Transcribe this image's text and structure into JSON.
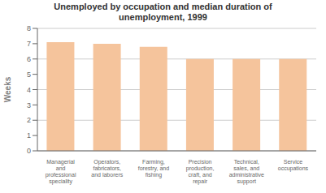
{
  "chart_data": {
    "type": "bar",
    "title": "Unemployed by occupation and median duration of\nunemployment, 1999",
    "ylabel": "Weeks",
    "categories": [
      "Managerial\nand\nprofessional\nspeciality",
      "Operators,\nfabricators,\nand laborers",
      "Farming,\nforestry, and\nfishing",
      "Precision\nproduction,\ncraft, and\nrepair",
      "Technical,\nsales, and\nadministrative\nsupport",
      "Service\noccupations"
    ],
    "values": [
      7.1,
      7.0,
      6.8,
      6.0,
      6.0,
      6.0
    ],
    "color": "#F5C49C",
    "ylim": [
      0,
      8
    ],
    "yticks": [
      0,
      1,
      2,
      3,
      4,
      5,
      6,
      7,
      8
    ],
    "grid": true
  }
}
